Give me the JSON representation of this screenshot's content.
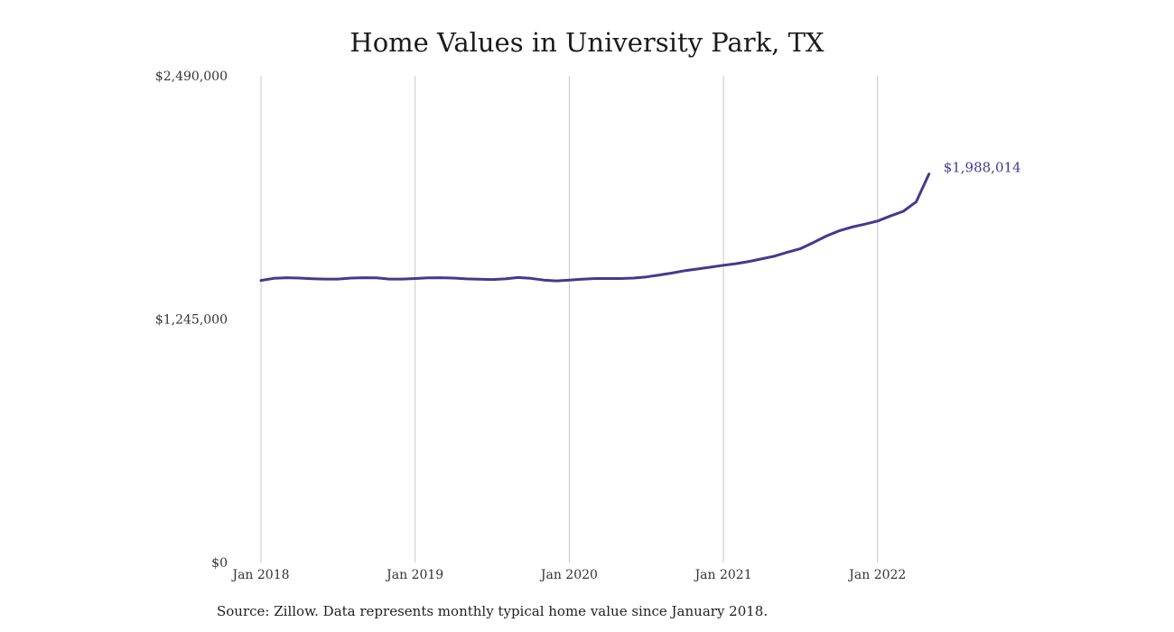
{
  "chart_data": {
    "type": "line",
    "title": "Home Values in University Park, TX",
    "source": "Source: Zillow. Data represents monthly typical home value since January 2018.",
    "xlabel": "",
    "ylabel": "",
    "ylim": [
      0,
      2490000
    ],
    "y_ticks": [
      {
        "value": 0,
        "label": "$0"
      },
      {
        "value": 1245000,
        "label": "$1,245,000"
      },
      {
        "value": 2490000,
        "label": "$2,490,000"
      }
    ],
    "x_ticks": [
      {
        "month": 0,
        "label": "Jan 2018"
      },
      {
        "month": 12,
        "label": "Jan 2019"
      },
      {
        "month": 24,
        "label": "Jan 2020"
      },
      {
        "month": 36,
        "label": "Jan 2021"
      },
      {
        "month": 48,
        "label": "Jan 2022"
      }
    ],
    "grid": {
      "vertical": true,
      "horizontal": false
    },
    "line_color": "#47388f",
    "end_label": "$1,988,014",
    "series": [
      {
        "x": [
          "2018-01",
          "2018-02",
          "2018-03",
          "2018-04",
          "2018-05",
          "2018-06",
          "2018-07",
          "2018-08",
          "2018-09",
          "2018-10",
          "2018-11",
          "2018-12",
          "2019-01",
          "2019-02",
          "2019-03",
          "2019-04",
          "2019-05",
          "2019-06",
          "2019-07",
          "2019-08",
          "2019-09",
          "2019-10",
          "2019-11",
          "2019-12",
          "2020-01",
          "2020-02",
          "2020-03",
          "2020-04",
          "2020-05",
          "2020-06",
          "2020-07",
          "2020-08",
          "2020-09",
          "2020-10",
          "2020-11",
          "2020-12",
          "2021-01",
          "2021-02",
          "2021-03",
          "2021-04",
          "2021-05",
          "2021-06",
          "2021-07",
          "2021-08",
          "2021-09",
          "2021-10",
          "2021-11",
          "2021-12",
          "2022-01",
          "2022-02",
          "2022-03",
          "2022-04",
          "2022-05"
        ],
        "values": [
          1443000,
          1454000,
          1457000,
          1455000,
          1452000,
          1450000,
          1450000,
          1455000,
          1457000,
          1456000,
          1450000,
          1450000,
          1453000,
          1456000,
          1457000,
          1455000,
          1451000,
          1449000,
          1448000,
          1451000,
          1458000,
          1454000,
          1445000,
          1441000,
          1445000,
          1449000,
          1453000,
          1453000,
          1453000,
          1455000,
          1461000,
          1471000,
          1481000,
          1493000,
          1502000,
          1511000,
          1521000,
          1529000,
          1540000,
          1554000,
          1568000,
          1588000,
          1606000,
          1637000,
          1670000,
          1697000,
          1716000,
          1731000,
          1747000,
          1773000,
          1797000,
          1845000,
          1988014
        ]
      }
    ]
  }
}
